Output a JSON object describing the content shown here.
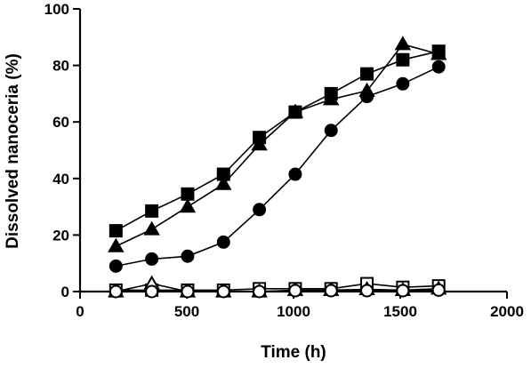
{
  "chart_data": {
    "type": "line",
    "xlabel": "Time (h)",
    "ylabel": "Dissolved nanoceria (%)",
    "xlim": [
      0,
      2000
    ],
    "ylim": [
      0,
      100
    ],
    "xticks": [
      0,
      500,
      1000,
      1500,
      2000
    ],
    "yticks": [
      0,
      20,
      40,
      60,
      80,
      100
    ],
    "grid": false,
    "series": [
      {
        "marker": "square-filled",
        "x": [
          168,
          336,
          504,
          672,
          840,
          1008,
          1176,
          1344,
          1512,
          1680
        ],
        "values": [
          21.5,
          28.5,
          34.5,
          41.5,
          54.5,
          63.5,
          70,
          77,
          82,
          85
        ]
      },
      {
        "marker": "triangle-filled",
        "x": [
          168,
          336,
          504,
          672,
          840,
          1008,
          1176,
          1344,
          1512,
          1680
        ],
        "values": [
          16,
          22,
          30,
          38,
          52,
          63.5,
          68,
          71,
          87.5,
          84
        ]
      },
      {
        "marker": "circle-filled",
        "x": [
          168,
          336,
          504,
          672,
          840,
          1008,
          1176,
          1344,
          1512,
          1680
        ],
        "values": [
          9,
          11.5,
          12.5,
          17.5,
          29,
          41.5,
          57,
          69,
          73.5,
          79.5
        ]
      },
      {
        "marker": "square-open",
        "x": [
          168,
          336,
          504,
          672,
          840,
          1008,
          1176,
          1344,
          1512,
          1680
        ],
        "values": [
          0.5,
          0.5,
          0.5,
          0.5,
          1,
          1,
          1,
          2.8,
          1.5,
          2
        ]
      },
      {
        "marker": "triangle-open",
        "x": [
          168,
          336,
          504,
          672,
          840,
          1008,
          1176,
          1344,
          1512,
          1680
        ],
        "values": [
          0,
          2.8,
          0,
          0,
          0,
          0.5,
          0.5,
          0.8,
          0.5,
          1
        ]
      },
      {
        "marker": "circle-open",
        "x": [
          168,
          336,
          504,
          672,
          840,
          1008,
          1176,
          1344,
          1512,
          1680
        ],
        "values": [
          0,
          0,
          0,
          0,
          0,
          0.3,
          0.3,
          0.3,
          0.3,
          0.5
        ]
      }
    ]
  }
}
